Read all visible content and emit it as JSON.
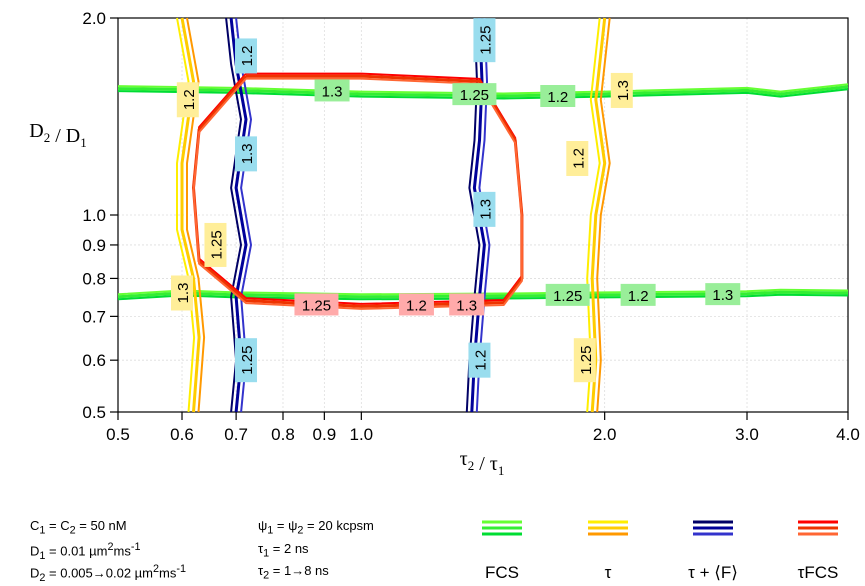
{
  "chart_data": {
    "type": "contour",
    "xlabel": "τ2 / τ1",
    "ylabel": "D2 / D1",
    "x_scale": "log",
    "y_scale": "log",
    "xlim": [
      0.5,
      4.0
    ],
    "ylim": [
      0.5,
      2.0
    ],
    "x_ticks": [
      0.5,
      0.6,
      0.7,
      0.8,
      0.9,
      1.0,
      2.0,
      3.0,
      4.0
    ],
    "x_tick_labels": [
      "0.5",
      "0.6",
      "0.7",
      "0.8",
      "0.9",
      "1.0",
      "2.0",
      "3.0",
      "4.0"
    ],
    "y_ticks": [
      0.5,
      0.6,
      0.7,
      0.8,
      0.9,
      1.0,
      2.0
    ],
    "y_tick_labels": [
      "0.5",
      "0.6",
      "0.7",
      "0.8",
      "0.9",
      "1.0",
      "2.0"
    ],
    "grid": true,
    "legend_position": "bottom-right",
    "series": [
      {
        "name": "FCS",
        "colors": [
          "#66ff33",
          "#33ee33",
          "#00dd33"
        ],
        "contours": [
          {
            "level_labels": [
              "1.3",
              "1.25",
              "1.2"
            ],
            "points": [
              [
                0.5,
                1.56
              ],
              [
                0.7,
                1.55
              ],
              [
                1.0,
                1.53
              ],
              [
                1.5,
                1.52
              ],
              [
                2.0,
                1.53
              ],
              [
                3.0,
                1.55
              ],
              [
                3.3,
                1.53
              ],
              [
                4.0,
                1.57
              ]
            ]
          },
          {
            "level_labels": [
              "1.25",
              "1.2",
              "1.3"
            ],
            "points": [
              [
                0.5,
                0.75
              ],
              [
                0.6,
                0.76
              ],
              [
                0.7,
                0.755
              ],
              [
                1.0,
                0.75
              ],
              [
                1.5,
                0.752
              ],
              [
                2.0,
                0.755
              ],
              [
                3.0,
                0.758
              ],
              [
                3.3,
                0.762
              ],
              [
                4.0,
                0.76
              ]
            ]
          }
        ]
      },
      {
        "name": "τ",
        "colors": [
          "#ffee00",
          "#ffcc00",
          "#ff9900"
        ],
        "contours": [
          {
            "level_labels": [
              "1.2",
              "1.25",
              "1.3"
            ],
            "points": [
              [
                0.6,
                2.0
              ],
              [
                0.62,
                1.6
              ],
              [
                0.6,
                1.2
              ],
              [
                0.6,
                0.95
              ],
              [
                0.62,
                0.8
              ],
              [
                0.63,
                0.65
              ],
              [
                0.62,
                0.5
              ]
            ]
          },
          {
            "level_labels": [
              "1.2",
              "1.25",
              "1.3"
            ],
            "points": [
              [
                2.0,
                2.0
              ],
              [
                1.95,
                1.5
              ],
              [
                2.0,
                1.2
              ],
              [
                1.95,
                1.0
              ],
              [
                1.93,
                0.8
              ],
              [
                1.95,
                0.6
              ],
              [
                1.93,
                0.5
              ]
            ]
          }
        ]
      },
      {
        "name": "τ + ⟨F⟩",
        "colors": [
          "#000066",
          "#000099",
          "#3333cc"
        ],
        "contours": [
          {
            "level_labels": [
              "1.2",
              "1.3",
              "1.25"
            ],
            "points": [
              [
                0.69,
                2.0
              ],
              [
                0.7,
                1.7
              ],
              [
                0.72,
                1.4
              ],
              [
                0.7,
                1.1
              ],
              [
                0.72,
                0.9
              ],
              [
                0.7,
                0.75
              ],
              [
                0.71,
                0.6
              ],
              [
                0.7,
                0.5
              ]
            ]
          },
          {
            "level_labels": [
              "1.25",
              "1.3",
              "1.2"
            ],
            "points": [
              [
                1.4,
                2.0
              ],
              [
                1.41,
                1.6
              ],
              [
                1.4,
                1.3
              ],
              [
                1.38,
                1.1
              ],
              [
                1.42,
                0.9
              ],
              [
                1.4,
                0.75
              ],
              [
                1.38,
                0.6
              ],
              [
                1.37,
                0.5
              ]
            ]
          }
        ]
      },
      {
        "name": "τFCS",
        "colors": [
          "#ff0000",
          "#ee3300",
          "#ff6633"
        ],
        "contours": [
          {
            "level_labels": [
              "1.25",
              "1.2",
              "1.3"
            ],
            "points": [
              [
                0.72,
                1.63
              ],
              [
                1.0,
                1.63
              ],
              [
                1.4,
                1.6
              ],
              [
                1.55,
                1.3
              ],
              [
                1.58,
                1.0
              ],
              [
                1.58,
                0.8
              ],
              [
                1.5,
                0.735
              ],
              [
                1.0,
                0.725
              ],
              [
                0.72,
                0.74
              ],
              [
                0.63,
                0.85
              ],
              [
                0.62,
                1.1
              ],
              [
                0.63,
                1.35
              ],
              [
                0.72,
                1.63
              ]
            ]
          }
        ]
      }
    ],
    "contour_labels": [
      {
        "series": "FCS",
        "text": "1.3"
      },
      {
        "series": "FCS",
        "text": "1.25"
      },
      {
        "series": "FCS",
        "text": "1.2"
      },
      {
        "series": "FCS",
        "text": "1.25"
      },
      {
        "series": "FCS",
        "text": "1.2"
      },
      {
        "series": "FCS",
        "text": "1.3"
      },
      {
        "series": "τ",
        "text": "1.2"
      },
      {
        "series": "τ",
        "text": "1.25"
      },
      {
        "series": "τ",
        "text": "1.3"
      },
      {
        "series": "τ",
        "text": "1.2"
      },
      {
        "series": "τ",
        "text": "1.3"
      },
      {
        "series": "τ",
        "text": "1.25"
      },
      {
        "series": "τ + ⟨F⟩",
        "text": "1.2"
      },
      {
        "series": "τ + ⟨F⟩",
        "text": "1.3"
      },
      {
        "series": "τ + ⟨F⟩",
        "text": "1.25"
      },
      {
        "series": "τ + ⟨F⟩",
        "text": "1.25"
      },
      {
        "series": "τ + ⟨F⟩",
        "text": "1.3"
      },
      {
        "series": "τ + ⟨F⟩",
        "text": "1.2"
      },
      {
        "series": "τFCS",
        "text": "1.25"
      },
      {
        "series": "τFCS",
        "text": "1.2"
      },
      {
        "series": "τFCS",
        "text": "1.3"
      }
    ],
    "label_colors": {
      "FCS": "#99ee99",
      "τ": "#ffee99",
      "τ + ⟨F⟩": "#99ddee",
      "τFCS": "#ffaaaa"
    }
  },
  "parameters": {
    "c": "C1 = C2 = 50 nM",
    "d1": "D1 = 0.01 µm2ms-1",
    "d2": "D2 = 0.005→0.02 µm2ms-1",
    "psi": "ψ1 = ψ2 = 20 kcpsm",
    "tau1": "τ1 = 2 ns",
    "tau2": "τ2 = 1→8 ns"
  }
}
